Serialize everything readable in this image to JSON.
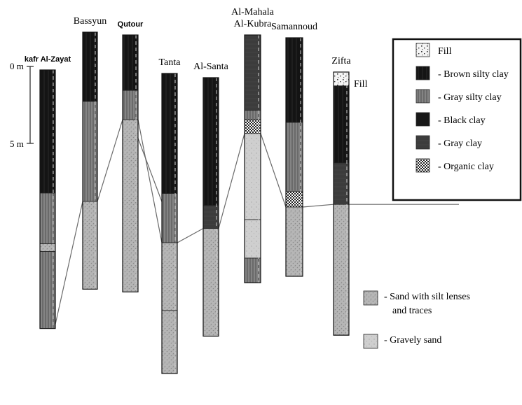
{
  "boreholes": [
    {
      "name": "kafr Al-Zayat",
      "bold": true,
      "layers": [
        {
          "type": "brown-silty-clay",
          "thickness": 8
        },
        {
          "type": "gray-silty-clay",
          "thickness": 3.3
        },
        {
          "type": "sand-silt",
          "thickness": 0.5
        },
        {
          "type": "gray-silty-clay",
          "thickness": 5
        }
      ]
    },
    {
      "name": "Bassyun",
      "bold": false,
      "layers": [
        {
          "type": "brown-silty-clay",
          "thickness": 4.5
        },
        {
          "type": "gray-silty-clay",
          "thickness": 6.5
        },
        {
          "type": "sand-silt",
          "thickness": 5.7
        }
      ]
    },
    {
      "name": "Qutour",
      "bold": true,
      "layers": [
        {
          "type": "brown-silty-clay",
          "thickness": 3.6
        },
        {
          "type": "gray-silty-clay",
          "thickness": 1.9
        },
        {
          "type": "sand-silt",
          "thickness": 11.2
        }
      ]
    },
    {
      "name": "Tanta",
      "bold": false,
      "layers": [
        {
          "type": "brown-silty-clay",
          "thickness": 7.8
        },
        {
          "type": "gray-silty-clay",
          "thickness": 3.2
        },
        {
          "type": "sand-silt",
          "thickness": 4.4
        },
        {
          "type": "sand-silt",
          "thickness": 4.1
        }
      ]
    },
    {
      "name": "Al-Santa",
      "bold": false,
      "layers": [
        {
          "type": "brown-silty-clay",
          "thickness": 8.3
        },
        {
          "type": "gray-clay",
          "thickness": 1.5
        },
        {
          "type": "sand-silt",
          "thickness": 7
        }
      ]
    },
    {
      "name": "Al-Mahala\nAl-Kubra",
      "bold": false,
      "layers": [
        {
          "type": "gray-clay",
          "thickness": 4.9
        },
        {
          "type": "gray-silty-clay",
          "thickness": 0.6
        },
        {
          "type": "organic-clay",
          "thickness": 0.9
        },
        {
          "type": "gravely-sand",
          "thickness": 5.6
        },
        {
          "type": "gravely-sand",
          "thickness": 2.5
        },
        {
          "type": "gray-silty-clay",
          "thickness": 1.6
        }
      ]
    },
    {
      "name": "Samannoud",
      "bold": false,
      "layers": [
        {
          "type": "brown-silty-clay",
          "thickness": 5.5
        },
        {
          "type": "gray-silty-clay",
          "thickness": 4.5
        },
        {
          "type": "organic-clay",
          "thickness": 1
        },
        {
          "type": "sand-silt",
          "thickness": 4.5
        }
      ]
    },
    {
      "name": "Zifta",
      "bold": false,
      "layers": [
        {
          "type": "fill",
          "thickness": 0.9
        },
        {
          "type": "brown-silty-clay",
          "thickness": 5
        },
        {
          "type": "gray-clay",
          "thickness": 2.7
        },
        {
          "type": "sand-silt",
          "thickness": 8.5
        }
      ]
    }
  ],
  "fill_label": "Fill",
  "scale": {
    "labels": [
      "0 m",
      "5 m"
    ]
  },
  "legend": [
    {
      "type": "fill",
      "label": "Fill"
    },
    {
      "type": "brown-silty-clay",
      "label": "- Brown silty clay"
    },
    {
      "type": "gray-silty-clay",
      "label": "- Gray silty clay"
    },
    {
      "type": "black-clay",
      "label": "- Black clay"
    },
    {
      "type": "gray-clay",
      "label": "- Gray clay"
    },
    {
      "type": "organic-clay",
      "label": "- Organic clay"
    }
  ],
  "legend_lower": [
    {
      "type": "sand-silt",
      "lines": [
        "- Sand with silt lenses",
        "and traces"
      ]
    },
    {
      "type": "gravely-sand",
      "lines": [
        "- Gravely sand"
      ]
    }
  ],
  "colors": {
    "brown-silty-clay": "#141414",
    "black-clay": "#181818",
    "gray-clay": "#3c3c3c",
    "gray-silty-clay": "#7a7a7a",
    "sand-silt": "#b6b6b6",
    "gravely-sand": "#cfcfcf",
    "organic-clay": "#9a9a9a",
    "fill": "#f4f4f4",
    "line": "#6a6a6a"
  }
}
